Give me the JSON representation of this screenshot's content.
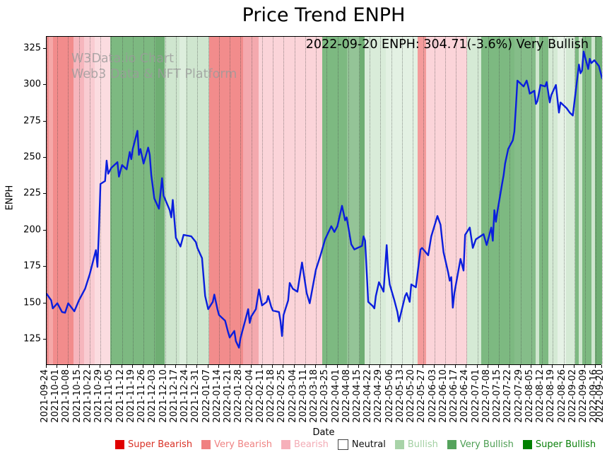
{
  "title": "Price Trend ENPH",
  "annotation": "2022-09-20 ENPH: 304.71(-3.6%) Very Bullish",
  "watermark": {
    "line1": "W3Data.io Chart",
    "line2": "Web3 Data & NFT Platform"
  },
  "axes": {
    "ylabel": "ENPH",
    "xlabel": "Date"
  },
  "line_color": "#0a1edd",
  "legend": [
    {
      "label": "Super Bearish",
      "swatch": "#e00000",
      "text_color": "#d93025",
      "swatch_border": "none"
    },
    {
      "label": "Very Bearish",
      "swatch": "#f08080",
      "text_color": "#ef8282",
      "swatch_border": "none"
    },
    {
      "label": "Bearish",
      "swatch": "#f6b0ba",
      "text_color": "#f3abb5",
      "swatch_border": "none"
    },
    {
      "label": "Neutral",
      "swatch": "#ffffff",
      "text_color": "#111111",
      "swatch_border": "#444444"
    },
    {
      "label": "Bullish",
      "swatch": "#a8d3a8",
      "text_color": "#a2d0a2",
      "swatch_border": "none"
    },
    {
      "label": "Very Bullish",
      "swatch": "#55a35c",
      "text_color": "#4d9e53",
      "swatch_border": "none"
    },
    {
      "label": "Super Bullish",
      "swatch": "#008000",
      "text_color": "#0a800a",
      "swatch_border": "none"
    }
  ],
  "chart_data": {
    "type": "line",
    "title": "Price Trend ENPH",
    "xlabel": "Date",
    "ylabel": "ENPH",
    "ylim": [
      107.1,
      333.1
    ],
    "yticks": [
      125,
      150,
      175,
      200,
      225,
      250,
      275,
      300,
      325
    ],
    "x_unit": "days_since_2021-09-24",
    "x_total_days": 361,
    "grid": "vertical-dotted-per-week",
    "legend_position": "below-axes-horizontal",
    "xticks": [
      "2021-09-24",
      "2021-10-01",
      "2021-10-08",
      "2021-10-15",
      "2021-10-22",
      "2021-10-29",
      "2021-11-05",
      "2021-11-12",
      "2021-11-19",
      "2021-11-26",
      "2021-12-03",
      "2021-12-10",
      "2021-12-17",
      "2021-12-24",
      "2021-12-31",
      "2022-01-07",
      "2022-01-14",
      "2022-01-21",
      "2022-01-28",
      "2022-02-04",
      "2022-02-11",
      "2022-02-18",
      "2022-02-25",
      "2022-03-04",
      "2022-03-11",
      "2022-03-18",
      "2022-03-25",
      "2022-04-01",
      "2022-04-08",
      "2022-04-15",
      "2022-04-22",
      "2022-04-29",
      "2022-05-06",
      "2022-05-13",
      "2022-05-20",
      "2022-05-27",
      "2022-06-03",
      "2022-06-10",
      "2022-06-17",
      "2022-06-24",
      "2022-07-01",
      "2022-07-08",
      "2022-07-15",
      "2022-07-22",
      "2022-07-29",
      "2022-08-05",
      "2022-08-12",
      "2022-08-19",
      "2022-08-26",
      "2022-09-02",
      "2022-09-09",
      "2022-09-16",
      "2022-09-20"
    ],
    "series": [
      {
        "name": "ENPH price",
        "points": [
          [
            0,
            156.5
          ],
          [
            3,
            152
          ],
          [
            4,
            146.5
          ],
          [
            7,
            150
          ],
          [
            10,
            144
          ],
          [
            12,
            143.5
          ],
          [
            14,
            150
          ],
          [
            18,
            144.5
          ],
          [
            21,
            152
          ],
          [
            25,
            160
          ],
          [
            28,
            170
          ],
          [
            32,
            186.5
          ],
          [
            33,
            175
          ],
          [
            34,
            200
          ],
          [
            35,
            232
          ],
          [
            38,
            234
          ],
          [
            39,
            248
          ],
          [
            40,
            239
          ],
          [
            42,
            243
          ],
          [
            46,
            247
          ],
          [
            47,
            237
          ],
          [
            49,
            245
          ],
          [
            52,
            242
          ],
          [
            54,
            254
          ],
          [
            55,
            249
          ],
          [
            56,
            256
          ],
          [
            59,
            268.5
          ],
          [
            60,
            252
          ],
          [
            61,
            256
          ],
          [
            63,
            246
          ],
          [
            66,
            257
          ],
          [
            67,
            252
          ],
          [
            68,
            238
          ],
          [
            70,
            222
          ],
          [
            73,
            215
          ],
          [
            75,
            236
          ],
          [
            76,
            224
          ],
          [
            80,
            214
          ],
          [
            81,
            209
          ],
          [
            82,
            221
          ],
          [
            84,
            195
          ],
          [
            87,
            189
          ],
          [
            89,
            197
          ],
          [
            94,
            196
          ],
          [
            97,
            192
          ],
          [
            98,
            188
          ],
          [
            101,
            181
          ],
          [
            103,
            155
          ],
          [
            105,
            146
          ],
          [
            108,
            151
          ],
          [
            109,
            156
          ],
          [
            111,
            146
          ],
          [
            112,
            142
          ],
          [
            116,
            138
          ],
          [
            118,
            130
          ],
          [
            119,
            126.5
          ],
          [
            122,
            131
          ],
          [
            123,
            124
          ],
          [
            125,
            119.5
          ],
          [
            126,
            126
          ],
          [
            129,
            138
          ],
          [
            131,
            146
          ],
          [
            132,
            136.5
          ],
          [
            133,
            141
          ],
          [
            136,
            146
          ],
          [
            138,
            159.5
          ],
          [
            139,
            154
          ],
          [
            140,
            148.5
          ],
          [
            143,
            151
          ],
          [
            144,
            155
          ],
          [
            146,
            147.5
          ],
          [
            147,
            145
          ],
          [
            151,
            144
          ],
          [
            152,
            138
          ],
          [
            153,
            127.5
          ],
          [
            154,
            142
          ],
          [
            157,
            152
          ],
          [
            158,
            164
          ],
          [
            160,
            160
          ],
          [
            163,
            158
          ],
          [
            166,
            178
          ],
          [
            169,
            157
          ],
          [
            171,
            150
          ],
          [
            175,
            173
          ],
          [
            178,
            183
          ],
          [
            181,
            194
          ],
          [
            185,
            203
          ],
          [
            187,
            199
          ],
          [
            189,
            203
          ],
          [
            192,
            217
          ],
          [
            194,
            207
          ],
          [
            195,
            209
          ],
          [
            198,
            190.5
          ],
          [
            200,
            187
          ],
          [
            205,
            189.5
          ],
          [
            206,
            196
          ],
          [
            207,
            193
          ],
          [
            209,
            151
          ],
          [
            212,
            148
          ],
          [
            213,
            146.5
          ],
          [
            214,
            155
          ],
          [
            216,
            164.5
          ],
          [
            219,
            158
          ],
          [
            221,
            190
          ],
          [
            222,
            172
          ],
          [
            223,
            163
          ],
          [
            226,
            152
          ],
          [
            228,
            144
          ],
          [
            229,
            137.5
          ],
          [
            233,
            155
          ],
          [
            234,
            157
          ],
          [
            236,
            151
          ],
          [
            237,
            163
          ],
          [
            240,
            161
          ],
          [
            243,
            187
          ],
          [
            244,
            188
          ],
          [
            248,
            183
          ],
          [
            250,
            196
          ],
          [
            254,
            210
          ],
          [
            256,
            204
          ],
          [
            257,
            194
          ],
          [
            258,
            185
          ],
          [
            261,
            171
          ],
          [
            262,
            165.5
          ],
          [
            263,
            168
          ],
          [
            264,
            147
          ],
          [
            265,
            157
          ],
          [
            269,
            180.5
          ],
          [
            271,
            172.5
          ],
          [
            272,
            197
          ],
          [
            275,
            202
          ],
          [
            277,
            188
          ],
          [
            279,
            194
          ],
          [
            284,
            197.5
          ],
          [
            286,
            190
          ],
          [
            289,
            202
          ],
          [
            290,
            193
          ],
          [
            291,
            214
          ],
          [
            292,
            206
          ],
          [
            293,
            213
          ],
          [
            296,
            232
          ],
          [
            297,
            238
          ],
          [
            298,
            246
          ],
          [
            300,
            256
          ],
          [
            303,
            262
          ],
          [
            304,
            268
          ],
          [
            305,
            285
          ],
          [
            306,
            303
          ],
          [
            307,
            302
          ],
          [
            310,
            299
          ],
          [
            312,
            303
          ],
          [
            313,
            299
          ],
          [
            314,
            294
          ],
          [
            317,
            296
          ],
          [
            318,
            287
          ],
          [
            319,
            289
          ],
          [
            321,
            300
          ],
          [
            324,
            299
          ],
          [
            325,
            302
          ],
          [
            327,
            288
          ],
          [
            328,
            293
          ],
          [
            331,
            300
          ],
          [
            333,
            281
          ],
          [
            334,
            288
          ],
          [
            338,
            284
          ],
          [
            340,
            281
          ],
          [
            342,
            279
          ],
          [
            346,
            314
          ],
          [
            347,
            308
          ],
          [
            348,
            310
          ],
          [
            349,
            323
          ],
          [
            352,
            311
          ],
          [
            353,
            318
          ],
          [
            354,
            315
          ],
          [
            356,
            317
          ],
          [
            359,
            313
          ],
          [
            361,
            304.71
          ]
        ]
      }
    ],
    "bands": [
      [
        0.0,
        0.004,
        "#f28c8c"
      ],
      [
        0.004,
        0.011,
        "#f5a8a8"
      ],
      [
        0.011,
        0.048,
        "#f28c8c"
      ],
      [
        0.048,
        0.067,
        "#f6b6bd"
      ],
      [
        0.067,
        0.087,
        "#f9ccd2"
      ],
      [
        0.087,
        0.115,
        "#fbdce0"
      ],
      [
        0.115,
        0.196,
        "#7db981"
      ],
      [
        0.196,
        0.212,
        "#6fae73"
      ],
      [
        0.212,
        0.239,
        "#cfe6cf"
      ],
      [
        0.239,
        0.251,
        "#ddeedd"
      ],
      [
        0.251,
        0.293,
        "#cfe6cf"
      ],
      [
        0.293,
        0.354,
        "#f28c8c"
      ],
      [
        0.354,
        0.382,
        "#f4a9ae"
      ],
      [
        0.382,
        0.496,
        "#fbd4d9"
      ],
      [
        0.496,
        0.541,
        "#7db981"
      ],
      [
        0.541,
        0.564,
        "#94c497"
      ],
      [
        0.564,
        0.573,
        "#6fae73"
      ],
      [
        0.573,
        0.611,
        "#d9ecd9"
      ],
      [
        0.611,
        0.668,
        "#e3f1e3"
      ],
      [
        0.668,
        0.683,
        "#f49b9b"
      ],
      [
        0.683,
        0.757,
        "#fbd4d9"
      ],
      [
        0.757,
        0.782,
        "#d5ead5"
      ],
      [
        0.782,
        0.842,
        "#7db981"
      ],
      [
        0.842,
        0.88,
        "#85bd89"
      ],
      [
        0.88,
        0.887,
        "#cfe6cf"
      ],
      [
        0.887,
        0.903,
        "#7db981"
      ],
      [
        0.903,
        0.92,
        "#d5ead5"
      ],
      [
        0.92,
        0.935,
        "#e6f2e6"
      ],
      [
        0.935,
        0.952,
        "#d5ead5"
      ],
      [
        0.952,
        0.958,
        "#7db981"
      ],
      [
        0.958,
        0.964,
        "#cfe6cf"
      ],
      [
        0.964,
        0.981,
        "#7db981"
      ],
      [
        0.981,
        0.987,
        "#cfe6cf"
      ],
      [
        0.987,
        1.0,
        "#6fae73"
      ]
    ]
  }
}
